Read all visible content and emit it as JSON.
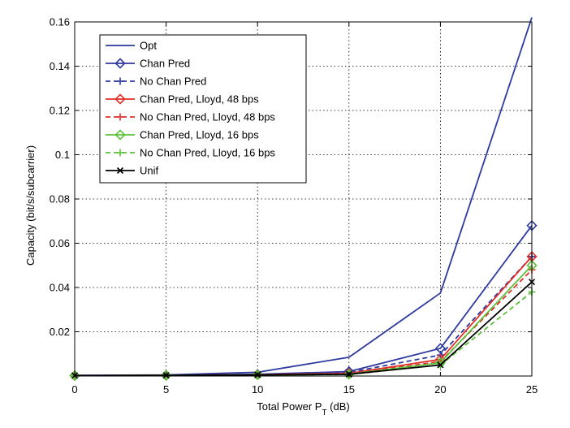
{
  "chart_data": {
    "type": "line",
    "title": "",
    "xlabel": "Total Power P",
    "xlabel_sub": "T",
    "xlabel_unit": " (dB)",
    "ylabel": "Capacity (bit/s/subcarrier)",
    "x": [
      0,
      5,
      10,
      15,
      20,
      25
    ],
    "xlim": [
      0,
      25
    ],
    "ylim": [
      0,
      0.16
    ],
    "xticks": [
      "0",
      "5",
      "10",
      "15",
      "20",
      "25"
    ],
    "yticks": [
      "0.02",
      "0.04",
      "0.06",
      "0.08",
      "0.1",
      "0.12",
      "0.14",
      "0.16"
    ],
    "ytick_values": [
      0.02,
      0.04,
      0.06,
      0.08,
      0.1,
      0.12,
      0.14,
      0.16
    ],
    "grid": true,
    "legend_position": "top-left",
    "series": [
      {
        "name": "Opt",
        "values": [
          0.0003,
          0.0005,
          0.0017,
          0.0085,
          0.0375,
          0.162
        ],
        "color": "#2e3a9e",
        "dash": "solid",
        "marker": "none"
      },
      {
        "name": "Chan Pred",
        "values": [
          0.0002,
          0.0003,
          0.0008,
          0.002,
          0.0125,
          0.068
        ],
        "color": "#2e3a9e",
        "dash": "solid",
        "marker": "diamond"
      },
      {
        "name": "No Chan Pred",
        "values": [
          0.0002,
          0.0003,
          0.0007,
          0.0016,
          0.0095,
          0.054
        ],
        "color": "#2e3a9e",
        "dash": "dashed",
        "marker": "plus"
      },
      {
        "name": "Chan Pred, Lloyd, 48 bps",
        "values": [
          0.0002,
          0.0003,
          0.0006,
          0.0012,
          0.0075,
          0.054
        ],
        "color": "#e0302a",
        "dash": "solid",
        "marker": "diamond"
      },
      {
        "name": "No Chan Pred, Lloyd, 48 bps",
        "values": [
          0.0002,
          0.0003,
          0.0006,
          0.001,
          0.0065,
          0.048
        ],
        "color": "#e0302a",
        "dash": "dashed",
        "marker": "plus"
      },
      {
        "name": "Chan Pred, Lloyd, 16 bps",
        "values": [
          0.0002,
          0.0003,
          0.0005,
          0.0008,
          0.006,
          0.05
        ],
        "color": "#5cc13a",
        "dash": "solid",
        "marker": "diamond"
      },
      {
        "name": "No Chan Pred, Lloyd, 16 bps",
        "values": [
          0.0002,
          0.0003,
          0.0005,
          0.0007,
          0.005,
          0.038
        ],
        "color": "#5cc13a",
        "dash": "dashed",
        "marker": "plus"
      },
      {
        "name": "Unif",
        "values": [
          0.0002,
          0.0003,
          0.0005,
          0.0008,
          0.005,
          0.0425
        ],
        "color": "#000000",
        "dash": "solid",
        "marker": "x"
      }
    ]
  }
}
